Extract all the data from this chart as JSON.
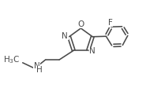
{
  "bg_color": "#ffffff",
  "line_color": "#4a4a4a",
  "line_width": 1.15,
  "font_size": 7.0,
  "fig_width": 2.05,
  "fig_height": 1.26,
  "dpi": 100,
  "xlim": [
    0,
    10.5
  ],
  "ylim": [
    0,
    6.5
  ]
}
